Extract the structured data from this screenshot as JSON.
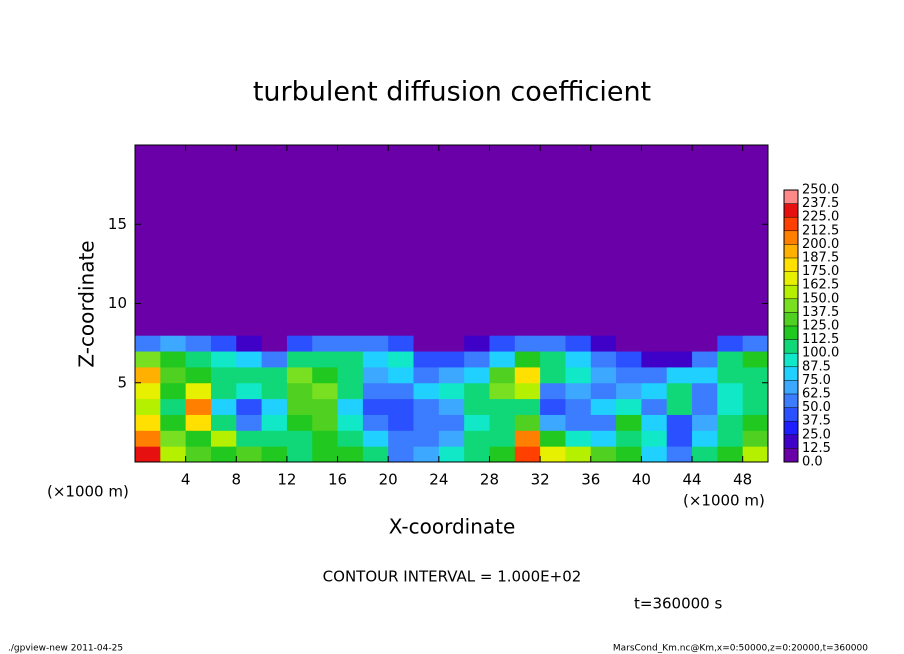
{
  "chart_data": {
    "type": "heatmap",
    "title": "turbulent diffusion coefficient",
    "x_label": "X-coordinate",
    "y_label": "Z-coordinate",
    "x_unit_left": "(×1000 m)",
    "x_unit_right": "(×1000 m)",
    "contour_note": "CONTOUR INTERVAL = 1.000E+02",
    "time_note": "t=360000 s",
    "footer_left": "./gpview-new  2011-04-25",
    "footer_right": "MarsCond_Km.nc@Km,x=0:50000,z=0:20000,t=360000",
    "xlim": [
      0,
      50
    ],
    "ylim": [
      0,
      20
    ],
    "xticks": [
      4,
      8,
      12,
      16,
      20,
      24,
      28,
      32,
      36,
      40,
      44,
      48
    ],
    "yticks": [
      5,
      10,
      15
    ],
    "xbins": [
      0,
      2,
      4,
      6,
      8,
      10,
      12,
      14,
      16,
      18,
      20,
      22,
      24,
      26,
      28,
      30,
      32,
      34,
      36,
      38,
      40,
      42,
      44,
      46,
      48,
      50
    ],
    "ybins": [
      0,
      1,
      2,
      3,
      4,
      5,
      6,
      7,
      8,
      20
    ],
    "values": [
      [
        230,
        160,
        130,
        120,
        130,
        120,
        110,
        120,
        120,
        100,
        60,
        70,
        90,
        110,
        120,
        220,
        170,
        160,
        130,
        120,
        80,
        50,
        100,
        120,
        150
      ],
      [
        210,
        140,
        120,
        150,
        110,
        100,
        110,
        120,
        110,
        80,
        50,
        60,
        70,
        100,
        110,
        200,
        120,
        90,
        80,
        110,
        90,
        40,
        80,
        110,
        130
      ],
      [
        180,
        120,
        180,
        110,
        60,
        90,
        120,
        130,
        90,
        50,
        40,
        50,
        60,
        90,
        100,
        130,
        70,
        50,
        60,
        120,
        80,
        40,
        70,
        110,
        120
      ],
      [
        150,
        110,
        200,
        80,
        40,
        80,
        130,
        130,
        80,
        40,
        40,
        60,
        70,
        100,
        110,
        110,
        40,
        50,
        80,
        90,
        60,
        100,
        50,
        90,
        110
      ],
      [
        170,
        120,
        170,
        100,
        90,
        110,
        130,
        140,
        100,
        50,
        60,
        80,
        90,
        110,
        140,
        150,
        60,
        70,
        60,
        70,
        80,
        110,
        60,
        90,
        100
      ],
      [
        190,
        130,
        120,
        110,
        100,
        100,
        140,
        120,
        110,
        70,
        80,
        60,
        70,
        80,
        130,
        180,
        110,
        90,
        70,
        60,
        50,
        80,
        80,
        100,
        110
      ],
      [
        140,
        120,
        110,
        90,
        80,
        60,
        110,
        110,
        110,
        80,
        90,
        40,
        40,
        50,
        80,
        120,
        100,
        80,
        60,
        40,
        20,
        20,
        50,
        110,
        120
      ],
      [
        60,
        70,
        60,
        40,
        20,
        10,
        40,
        50,
        60,
        50,
        40,
        10,
        10,
        20,
        40,
        60,
        50,
        40,
        20,
        10,
        0,
        0,
        10,
        40,
        60
      ],
      [
        0,
        0,
        0,
        0,
        0,
        0,
        0,
        0,
        0,
        0,
        0,
        0,
        0,
        0,
        0,
        0,
        0,
        0,
        0,
        0,
        0,
        0,
        0,
        0,
        0
      ]
    ],
    "colorbar": {
      "levels": [
        {
          "value": 0,
          "label": "0.0"
        },
        {
          "value": 12.5,
          "label": "12.5"
        },
        {
          "value": 25,
          "label": "25.0"
        },
        {
          "value": 37.5,
          "label": "37.5"
        },
        {
          "value": 50,
          "label": "50.0"
        },
        {
          "value": 62.5,
          "label": "62.5"
        },
        {
          "value": 75,
          "label": "75.0"
        },
        {
          "value": 87.5,
          "label": "87.5"
        },
        {
          "value": 100,
          "label": "100.0"
        },
        {
          "value": 112.5,
          "label": "112.5"
        },
        {
          "value": 125,
          "label": "125.0"
        },
        {
          "value": 137.5,
          "label": "137.5"
        },
        {
          "value": 150,
          "label": "150.0"
        },
        {
          "value": 162.5,
          "label": "162.5"
        },
        {
          "value": 175,
          "label": "175.0"
        },
        {
          "value": 187.5,
          "label": "187.5"
        },
        {
          "value": 200,
          "label": "200.0"
        },
        {
          "value": 212.5,
          "label": "212.5"
        },
        {
          "value": 225,
          "label": "225.0"
        },
        {
          "value": 237.5,
          "label": "237.5"
        },
        {
          "value": 250,
          "label": "250.0"
        }
      ],
      "colors": [
        "#6a00a8",
        "#3f00c8",
        "#1e1eff",
        "#2a50ff",
        "#3c7dff",
        "#3ca8ff",
        "#20d0ff",
        "#10e8c8",
        "#10d878",
        "#20c820",
        "#50d020",
        "#78e020",
        "#b4f000",
        "#e6f000",
        "#ffe000",
        "#ffb000",
        "#ff8000",
        "#ff4000",
        "#e61010",
        "#ff8888"
      ]
    }
  }
}
